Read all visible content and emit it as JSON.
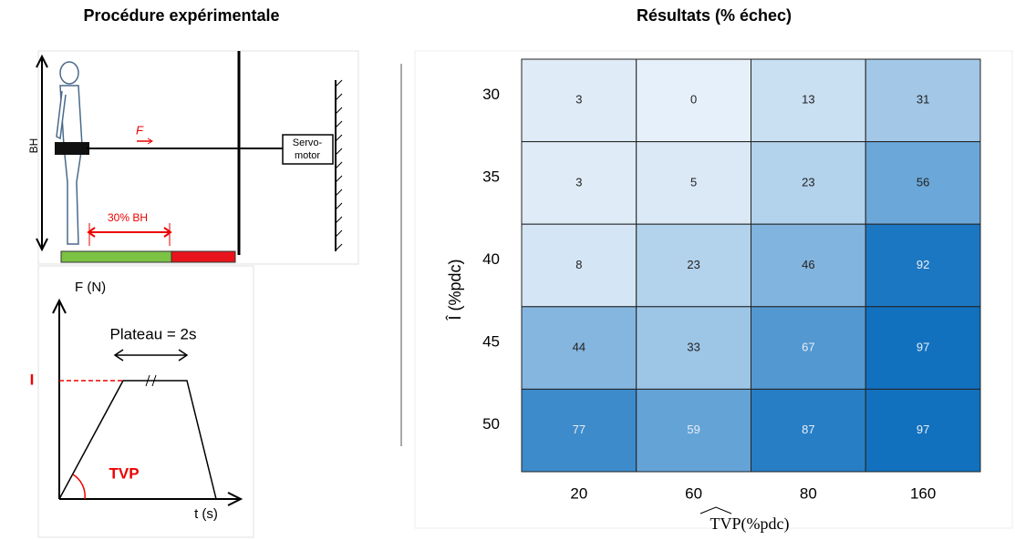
{
  "left_title": "Procédure expérimentale",
  "diagram": {
    "height_label": "BH",
    "force_label": "F",
    "motor_label_1": "Servo-",
    "motor_label_2": "motor",
    "distance_label": "30% BH",
    "y_axis_label": "F (N)",
    "plateau_label": "Plateau = 2s",
    "level_label": "I",
    "slope_label": "TVP",
    "x_axis_label": "t (s)"
  },
  "chart_data": {
    "type": "heatmap",
    "title": "Résultats (% échec)",
    "x_label": "TVP(%pdc)",
    "y_label": "Î (%pdc)",
    "x_categories": [
      20,
      60,
      80,
      160
    ],
    "y_categories": [
      30,
      35,
      40,
      45,
      50
    ],
    "values": [
      [
        3,
        0,
        13,
        31
      ],
      [
        3,
        5,
        23,
        56
      ],
      [
        8,
        23,
        46,
        92
      ],
      [
        44,
        33,
        67,
        97
      ],
      [
        77,
        59,
        87,
        97
      ]
    ],
    "colormap": [
      "#e6f0fa",
      "#0a6dbd"
    ],
    "clim": [
      0,
      100
    ]
  }
}
